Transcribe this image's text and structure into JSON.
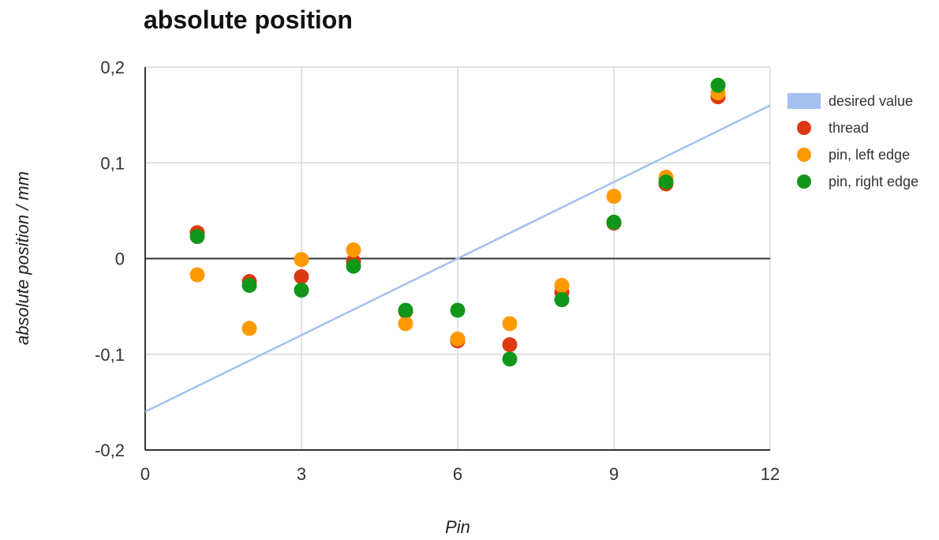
{
  "chart_data": {
    "type": "scatter",
    "title": "absolute position",
    "xlabel": "Pin",
    "ylabel": "absolute position / mm",
    "xlim": [
      0,
      12
    ],
    "ylim": [
      -0.2,
      0.2
    ],
    "x_ticks": [
      0,
      3,
      6,
      9,
      12
    ],
    "x_tick_labels": [
      "0",
      "3",
      "6",
      "9",
      "12"
    ],
    "y_ticks": [
      -0.2,
      -0.1,
      0,
      0.1,
      0.2
    ],
    "y_tick_labels": [
      "-0,2",
      "-0,1",
      "0",
      "0,1",
      "0,2"
    ],
    "grid": true,
    "legend_position": "right",
    "line": {
      "name": "desired value",
      "color": "#a4bff0",
      "x": [
        0,
        12
      ],
      "y": [
        -0.16,
        0.16
      ]
    },
    "series": [
      {
        "name": "thread",
        "color": "#dc3912",
        "x": [
          1,
          2,
          3,
          4,
          5,
          6,
          7,
          8,
          9,
          10,
          11
        ],
        "y": [
          0.027,
          -0.024,
          -0.019,
          -0.003,
          -0.055,
          -0.086,
          -0.09,
          -0.035,
          0.037,
          0.078,
          0.169
        ]
      },
      {
        "name": "pin, left edge",
        "color": "#ff9900",
        "x": [
          1,
          2,
          3,
          4,
          5,
          6,
          7,
          8,
          9,
          10,
          11
        ],
        "y": [
          -0.017,
          -0.073,
          -0.001,
          0.009,
          -0.068,
          -0.084,
          -0.068,
          -0.028,
          0.065,
          0.085,
          0.173
        ]
      },
      {
        "name": "pin, right edge",
        "color": "#109618",
        "x": [
          1,
          2,
          3,
          4,
          5,
          6,
          7,
          8,
          9,
          10,
          11
        ],
        "y": [
          0.023,
          -0.028,
          -0.033,
          -0.008,
          -0.054,
          -0.054,
          -0.105,
          -0.043,
          0.038,
          0.08,
          0.181
        ]
      }
    ]
  }
}
